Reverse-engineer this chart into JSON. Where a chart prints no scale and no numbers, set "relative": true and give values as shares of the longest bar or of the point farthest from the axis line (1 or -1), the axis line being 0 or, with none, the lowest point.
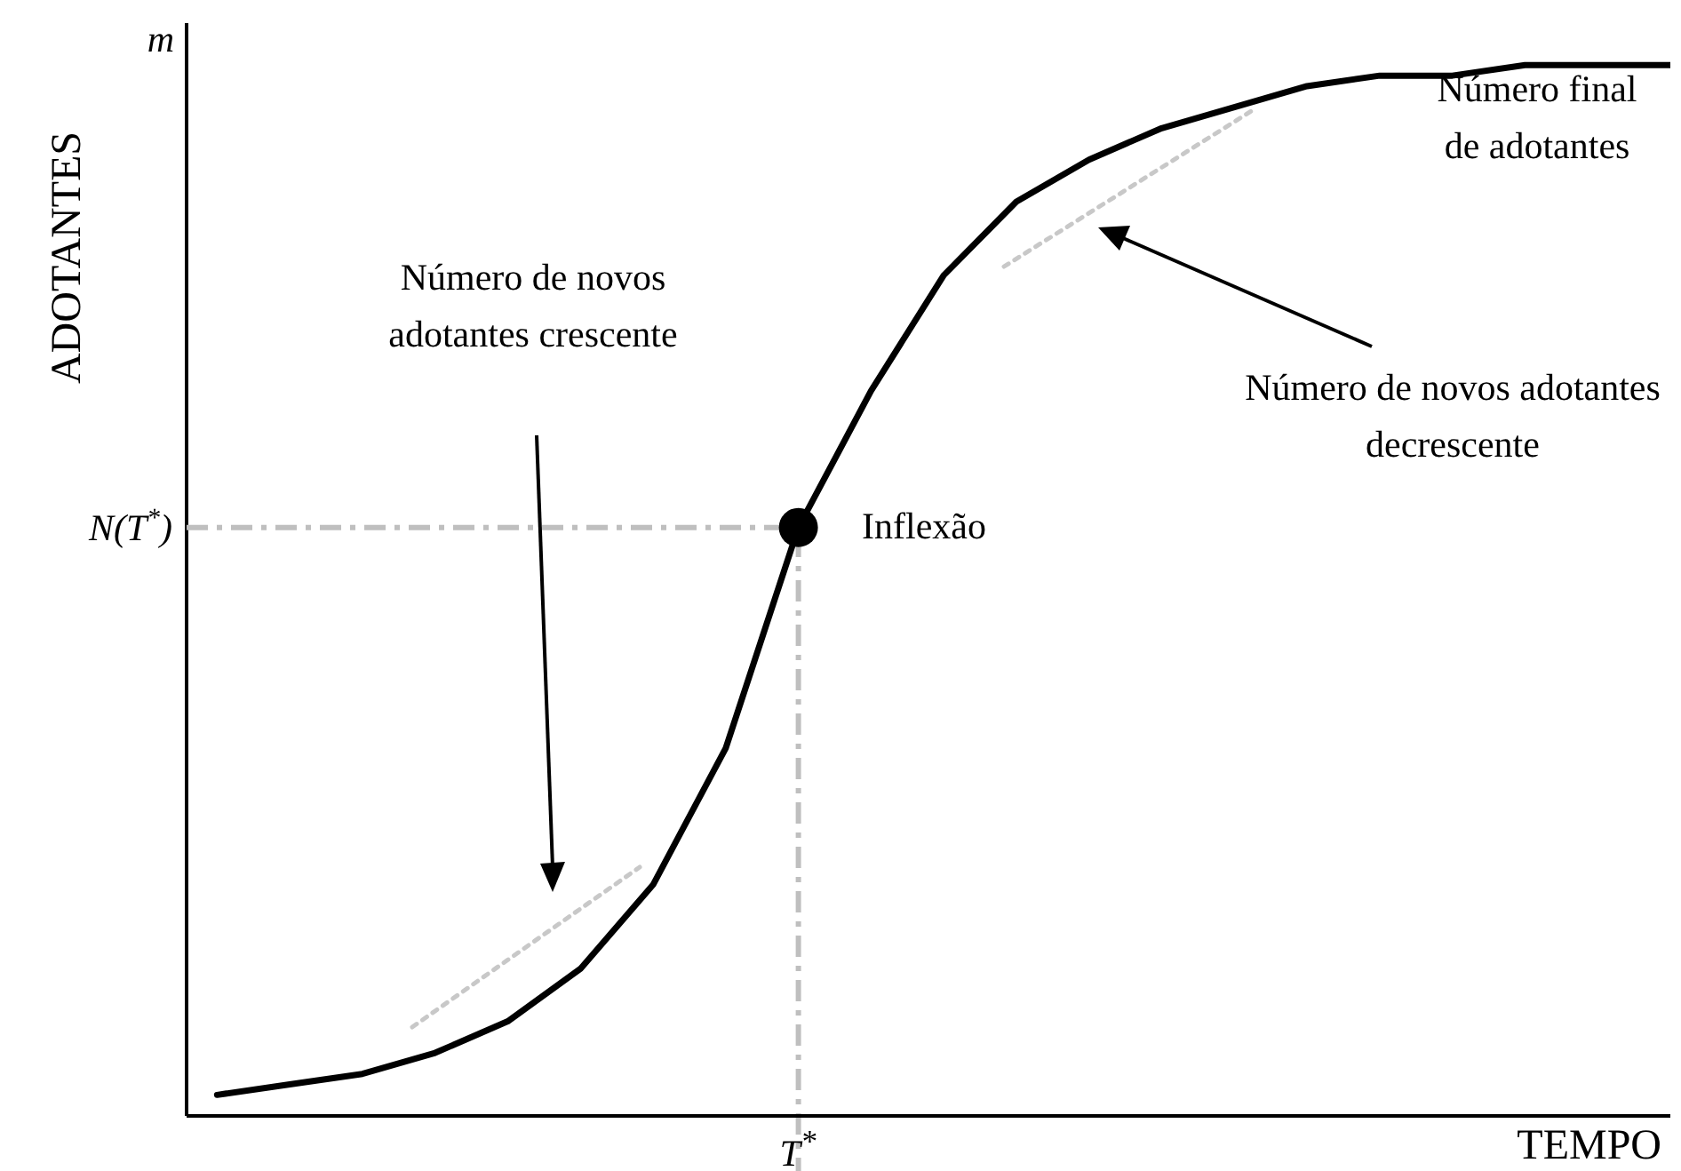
{
  "chart_data": {
    "type": "line",
    "xlabel": "TEMPO",
    "ylabel": "ADOTANTES",
    "relative": true,
    "categories": [
      null,
      null,
      null,
      null,
      null,
      null,
      null,
      null,
      null,
      null,
      null,
      null,
      null,
      null,
      null,
      null,
      null,
      null,
      null,
      null,
      null
    ],
    "series": [
      {
        "color": "#000000",
        "values": [
          0.02,
          0.03,
          0.04,
          0.06,
          0.09,
          0.14,
          0.22,
          0.35,
          0.56,
          0.69,
          0.8,
          0.87,
          0.91,
          0.94,
          0.96,
          0.98,
          0.99,
          0.99,
          1.0,
          1.0,
          1.0
        ]
      }
    ],
    "ref_lines": [
      {
        "axis": "y",
        "value": 0.56,
        "label": "N(T$^{*}$)",
        "color": "#bfbfbf",
        "line_style": "dashed"
      },
      {
        "axis": "x",
        "color": "#bfbfbf",
        "line_style": "dashed"
      }
    ],
    "annotations": [
      "m",
      "Inflexão",
      "T$^{*}$",
      "Número final de adotantes",
      "Número de novos adotantes decrescente",
      "Número de novos adotantes crescente"
    ],
    "grid": false,
    "legend": false
  }
}
